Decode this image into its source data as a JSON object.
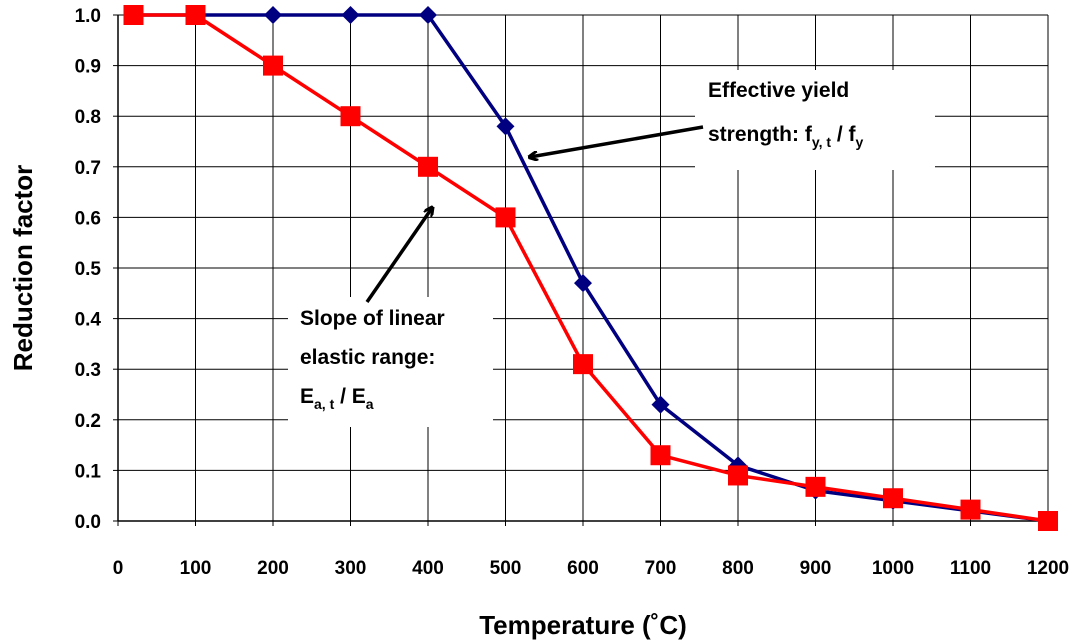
{
  "chart_data": {
    "type": "line",
    "title": "",
    "xlabel": "Temperature (˚C)",
    "ylabel": "Reduction factor",
    "xlim": [
      0,
      1200
    ],
    "ylim": [
      0.0,
      1.0
    ],
    "x_ticks": [
      "0",
      "100",
      "200",
      "300",
      "400",
      "500",
      "600",
      "700",
      "800",
      "900",
      "1000",
      "1100",
      "1200"
    ],
    "y_ticks": [
      "0.0",
      "0.1",
      "0.2",
      "0.3",
      "0.4",
      "0.5",
      "0.6",
      "0.7",
      "0.8",
      "0.9",
      "1.0"
    ],
    "grid": true,
    "legend": "none",
    "series": [
      {
        "color": "#000080",
        "marker": "diamond",
        "x": [
          20,
          100,
          200,
          300,
          400,
          500,
          600,
          700,
          800,
          900,
          1000,
          1100,
          1200
        ],
        "y": [
          1.0,
          1.0,
          1.0,
          1.0,
          1.0,
          0.78,
          0.47,
          0.23,
          0.11,
          0.06,
          0.04,
          0.02,
          0.0
        ]
      },
      {
        "color": "#ff0000",
        "marker": "square",
        "x": [
          20,
          100,
          200,
          300,
          400,
          500,
          600,
          700,
          800,
          900,
          1000,
          1100,
          1200
        ],
        "y": [
          1.0,
          1.0,
          0.9,
          0.8,
          0.7,
          0.6,
          0.31,
          0.13,
          0.09,
          0.0675,
          0.045,
          0.0225,
          0.0
        ]
      }
    ],
    "annotations": {
      "yield": {
        "line1": "Effective yield",
        "line2_prefix": "strength: f",
        "line2_sub1": "y, t",
        "line2_mid": " / f",
        "line2_sub2": "y"
      },
      "elastic": {
        "line1": "Slope of linear",
        "line2": "elastic range:",
        "line3_prefix": "E",
        "line3_sub1": "a, t",
        "line3_mid": " / E",
        "line3_sub2": "a"
      }
    }
  }
}
